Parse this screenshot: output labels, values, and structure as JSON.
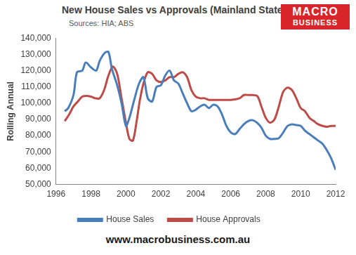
{
  "chart_data": {
    "type": "line",
    "title": "New House Sales vs Approvals (Mainland States)",
    "subtitle": "Sources: HIA; ABS",
    "y_label": "Rolling Annual",
    "annotations": [
      "MACRO",
      "BUSINESS",
      "www.macrobusiness.com.au"
    ],
    "xlim": [
      1996,
      2012
    ],
    "xticks": [
      1996,
      1998,
      2000,
      2002,
      2004,
      2006,
      2008,
      2010,
      2012
    ],
    "ylim": [
      50000,
      140000
    ],
    "yticks": [
      {
        "value": 50000,
        "label": "50,000"
      },
      {
        "value": 60000,
        "label": "60,000"
      },
      {
        "value": 70000,
        "label": "70,000"
      },
      {
        "value": 80000,
        "label": "80,000"
      },
      {
        "value": 90000,
        "label": "90,000"
      },
      {
        "value": 100000,
        "label": "100,000"
      },
      {
        "value": 110000,
        "label": "110,000"
      },
      {
        "value": 120000,
        "label": "120,000"
      },
      {
        "value": 130000,
        "label": "130,000"
      },
      {
        "value": 140000,
        "label": "140,000"
      }
    ],
    "grid": false,
    "legend": "bottom",
    "series": [
      {
        "name": "House Sales",
        "color": "#4a7ebb",
        "x": [
          1996.5,
          1996.7,
          1997.0,
          1997.2,
          1997.5,
          1997.7,
          1998.0,
          1998.3,
          1998.5,
          1998.8,
          1999.0,
          1999.2,
          1999.5,
          1999.75,
          2000.0,
          2000.2,
          2000.5,
          2000.75,
          2001.0,
          2001.25,
          2001.5,
          2001.75,
          2002.0,
          2002.25,
          2002.5,
          2002.75,
          2003.0,
          2003.25,
          2003.5,
          2003.75,
          2004.0,
          2004.25,
          2004.5,
          2004.75,
          2005.0,
          2005.25,
          2005.5,
          2005.75,
          2006.0,
          2006.25,
          2006.5,
          2006.75,
          2007.0,
          2007.25,
          2007.5,
          2007.75,
          2008.0,
          2008.25,
          2008.5,
          2008.75,
          2009.0,
          2009.25,
          2009.5,
          2009.75,
          2010.0,
          2010.25,
          2010.5,
          2010.75,
          2011.0,
          2011.25,
          2011.5,
          2011.75,
          2012.0
        ],
        "values": [
          95000,
          97000,
          105000,
          119000,
          120000,
          125000,
          122000,
          120000,
          126000,
          131000,
          131500,
          121000,
          111000,
          100000,
          86000,
          91000,
          103000,
          112000,
          116000,
          103000,
          101000,
          110000,
          111000,
          117000,
          120000,
          114000,
          112000,
          106000,
          100000,
          95000,
          96000,
          98000,
          99000,
          97000,
          99000,
          98000,
          93000,
          86000,
          82000,
          81000,
          84000,
          87000,
          89000,
          89500,
          88000,
          85000,
          80000,
          78000,
          78000,
          78500,
          82000,
          86000,
          87000,
          86500,
          86000,
          83000,
          81000,
          79000,
          77000,
          75000,
          71000,
          66000,
          59000
        ]
      },
      {
        "name": "House Approvals",
        "color": "#be4b48",
        "x": [
          1996.5,
          1996.75,
          1997.0,
          1997.25,
          1997.5,
          1997.75,
          1998.0,
          1998.25,
          1998.5,
          1998.75,
          1999.0,
          1999.25,
          1999.5,
          1999.75,
          2000.0,
          2000.2,
          2000.4,
          2000.6,
          2000.8,
          2001.0,
          2001.25,
          2001.5,
          2001.75,
          2002.0,
          2002.25,
          2002.5,
          2002.75,
          2003.0,
          2003.25,
          2003.5,
          2003.75,
          2004.0,
          2004.25,
          2004.5,
          2004.75,
          2005.0,
          2005.5,
          2006.0,
          2006.5,
          2006.75,
          2007.0,
          2007.5,
          2007.75,
          2008.0,
          2008.25,
          2008.5,
          2008.75,
          2009.0,
          2009.25,
          2009.5,
          2009.75,
          2010.0,
          2010.25,
          2010.5,
          2010.75,
          2011.0,
          2011.25,
          2011.5,
          2011.75,
          2012.0
        ],
        "values": [
          89000,
          93000,
          98000,
          101000,
          104000,
          104500,
          104000,
          103000,
          103000,
          108000,
          117000,
          122500,
          118000,
          103000,
          88000,
          78000,
          77000,
          88000,
          102000,
          112000,
          119000,
          118000,
          114000,
          113000,
          114000,
          116000,
          116000,
          118000,
          119000,
          116000,
          108000,
          104000,
          103000,
          103000,
          102000,
          102000,
          102000,
          102000,
          103000,
          105000,
          105000,
          104500,
          98000,
          91000,
          88000,
          90000,
          98000,
          107000,
          109500,
          108000,
          103000,
          97000,
          95000,
          91000,
          89000,
          87000,
          86000,
          85500,
          86000,
          86000
        ]
      }
    ]
  }
}
